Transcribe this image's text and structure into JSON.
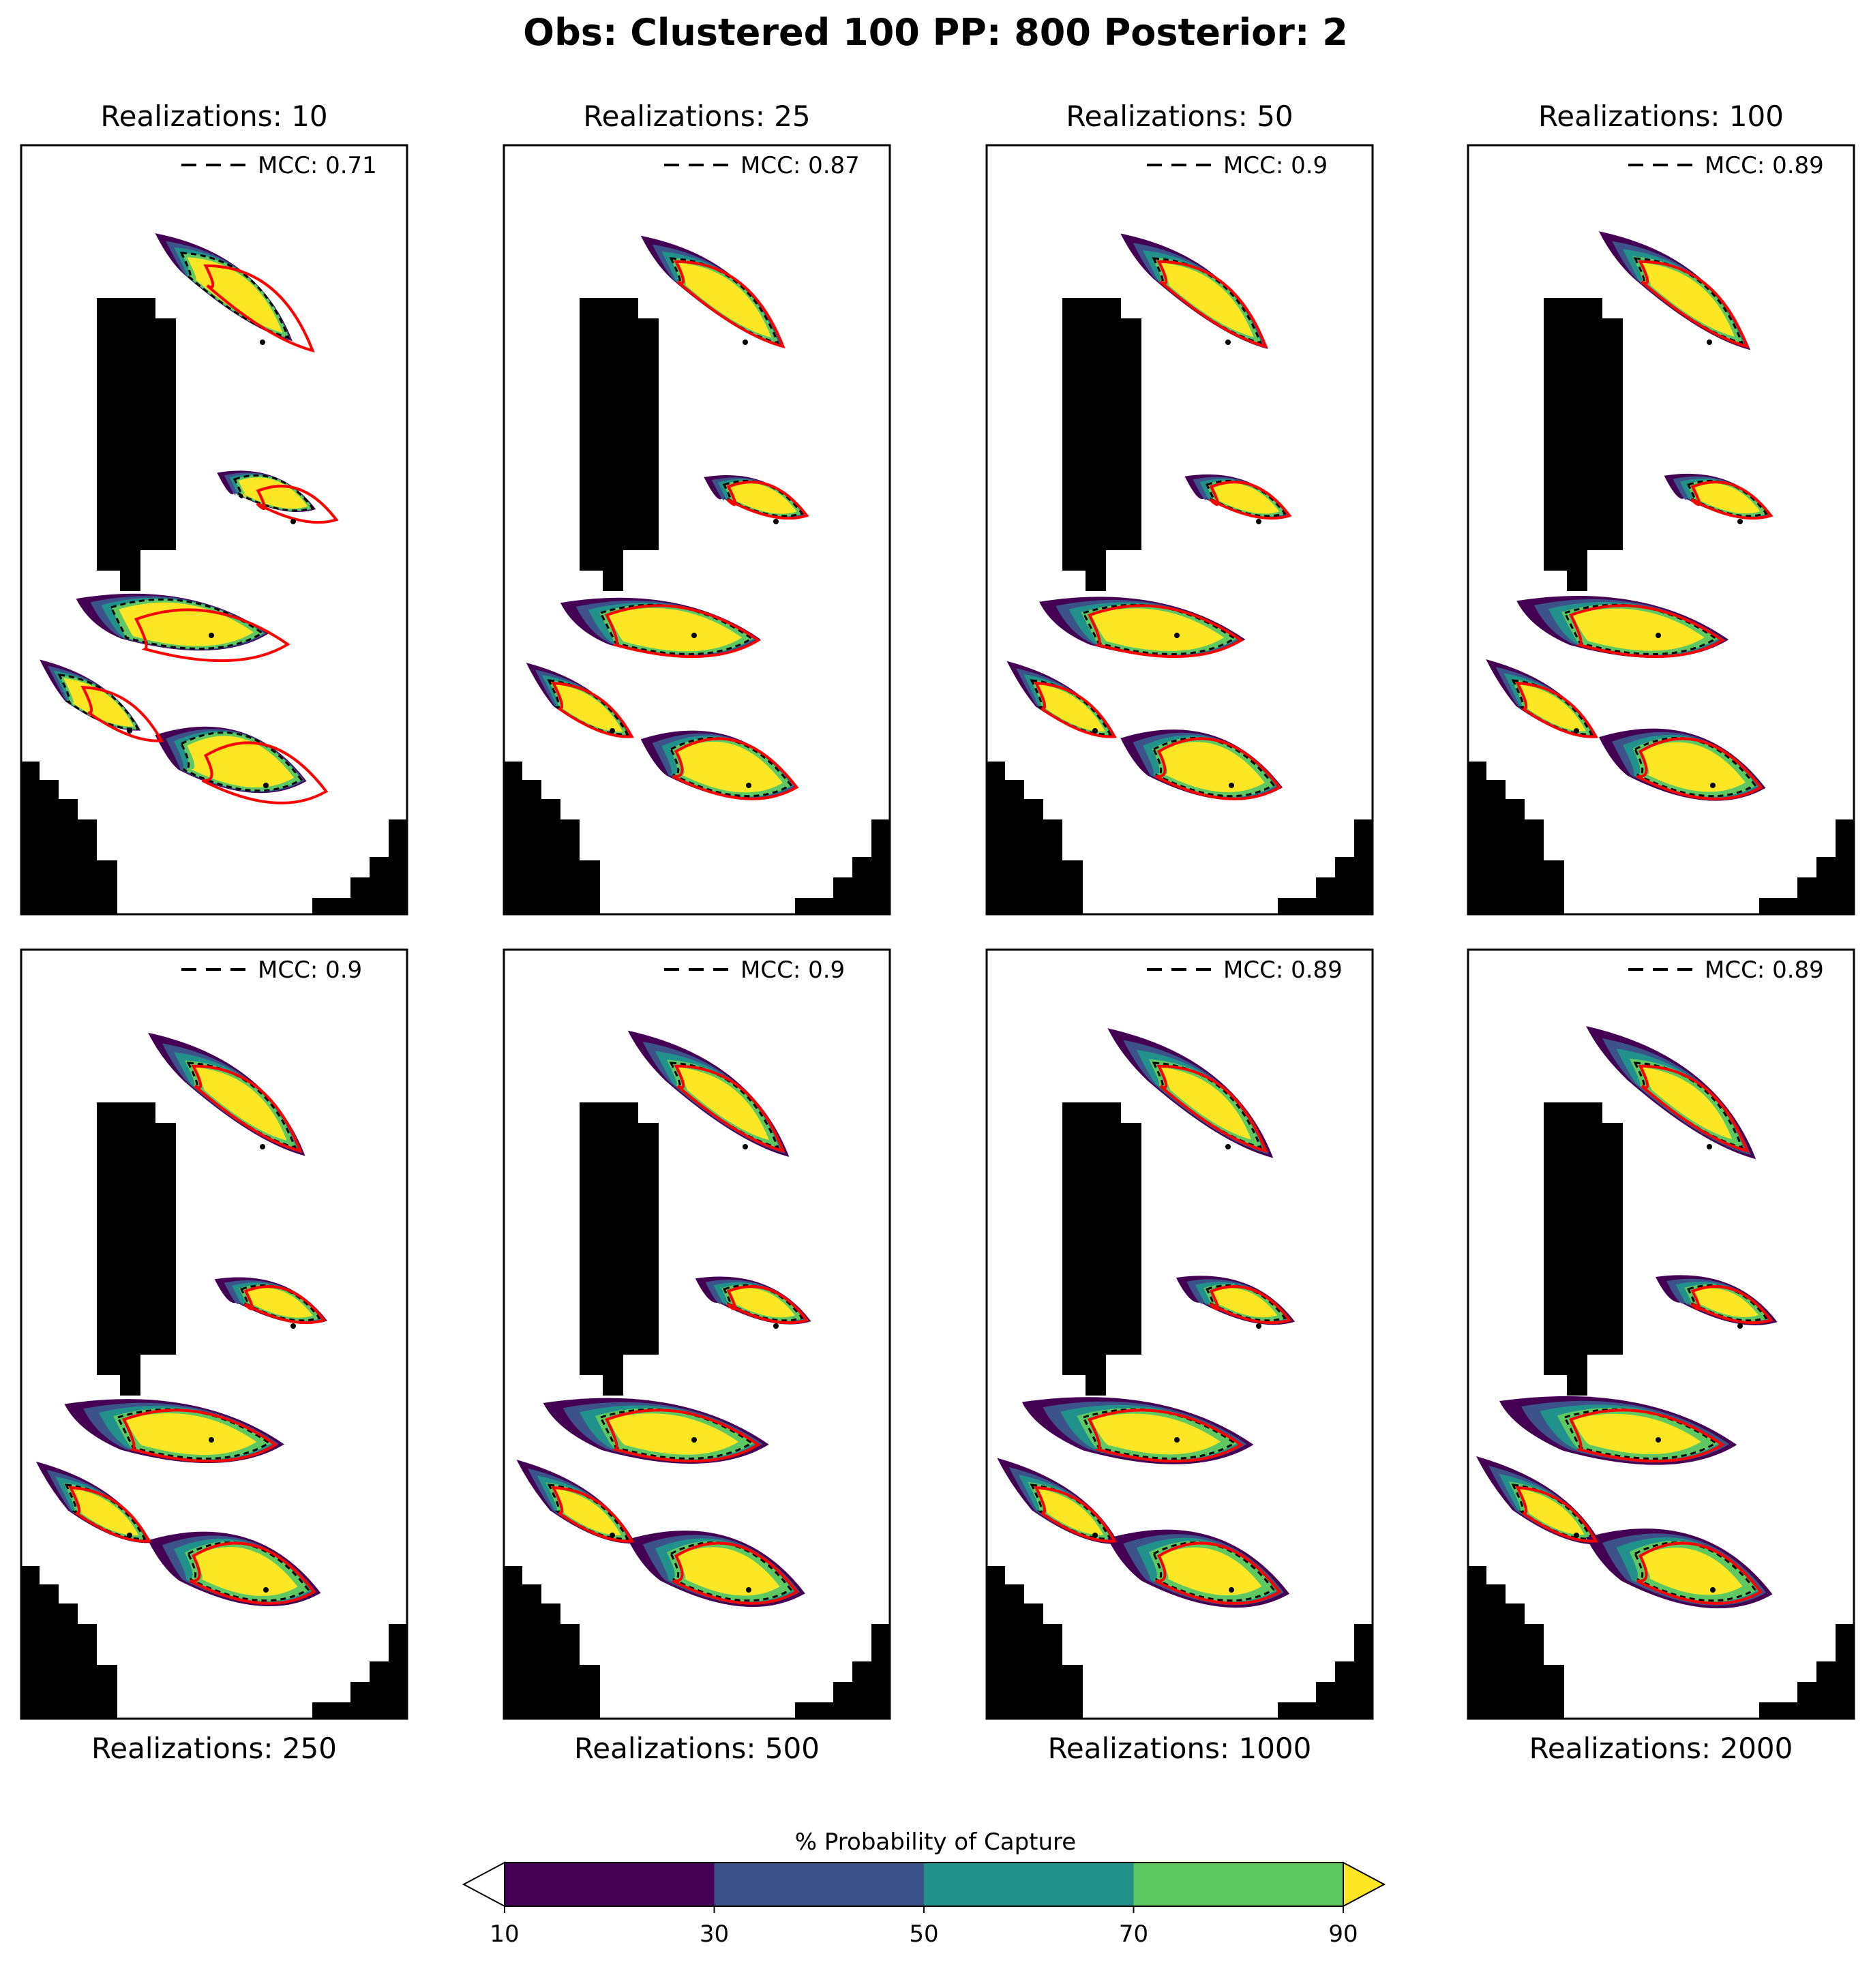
{
  "figure": {
    "suptitle": "Obs: Clustered 100  PP: 800  Posterior: 2"
  },
  "chart_data": {
    "type": "heatmap",
    "title": "Obs: Clustered 100  PP: 800  Posterior: 2",
    "colorbar": {
      "label": "% Probability of Capture",
      "ticks": [
        "10",
        "30",
        "50",
        "70",
        "90"
      ],
      "levels": [
        10,
        30,
        50,
        70,
        90
      ],
      "colors": [
        "#440154",
        "#3b528b",
        "#21918c",
        "#5ec962",
        "#fde725"
      ],
      "extend": "both",
      "under_color": "#ffffff",
      "over_color": "#fde725"
    },
    "legend": {
      "entry": "MCC",
      "style": "dashed",
      "position": "upper-right"
    },
    "panels": [
      {
        "title": "Realizations: 10",
        "realizations": 10,
        "mcc": 0.71,
        "mcc_label": "MCC: 0.71"
      },
      {
        "title": "Realizations: 25",
        "realizations": 25,
        "mcc": 0.87,
        "mcc_label": "MCC: 0.87"
      },
      {
        "title": "Realizations: 50",
        "realizations": 50,
        "mcc": 0.9,
        "mcc_label": "MCC: 0.9"
      },
      {
        "title": "Realizations: 100",
        "realizations": 100,
        "mcc": 0.89,
        "mcc_label": "MCC: 0.89"
      },
      {
        "title": "Realizations: 250",
        "realizations": 250,
        "mcc": 0.9,
        "mcc_label": "MCC: 0.9"
      },
      {
        "title": "Realizations: 500",
        "realizations": 500,
        "mcc": 0.9,
        "mcc_label": "MCC: 0.9"
      },
      {
        "title": "Realizations: 1000",
        "realizations": 1000,
        "mcc": 0.89,
        "mcc_label": "MCC: 0.89"
      },
      {
        "title": "Realizations: 2000",
        "realizations": 2000,
        "mcc": 0.89,
        "mcc_label": "MCC: 0.89"
      }
    ]
  },
  "colors": {
    "reference_outline": "#ff0000",
    "mcc_contour": "#000000",
    "inactive_cells": "#000000"
  }
}
